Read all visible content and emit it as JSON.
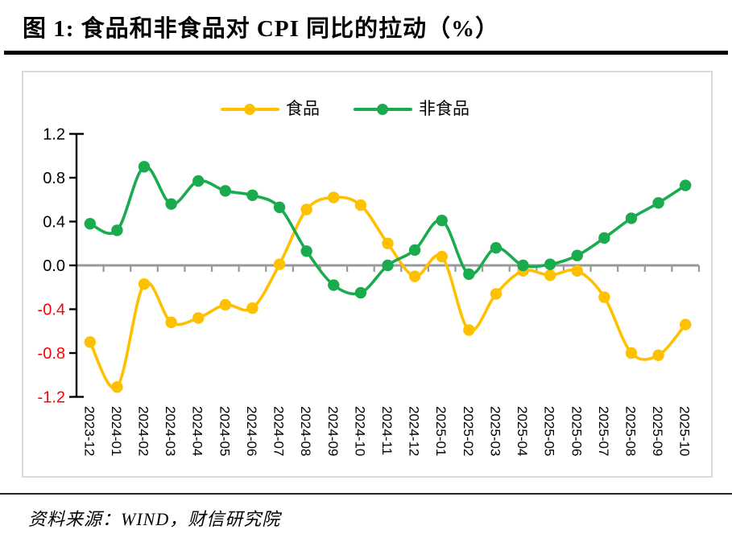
{
  "title": "图 1:  食品和非食品对 CPI 同比的拉动（%）",
  "source": "资料来源：WIND，财信研究院",
  "legend": {
    "food_label": "食品",
    "nonfood_label": "非食品"
  },
  "colors": {
    "food": "#FFC000",
    "nonfood": "#1BAB4F",
    "zero_line": "#999999",
    "axis": "#000000",
    "positive_tick_label": "#000000",
    "negative_tick_label": "#FF0000",
    "chart_border": "#D9D9D9"
  },
  "chart_data": {
    "type": "line",
    "smooth": true,
    "marker": "circle",
    "legend_position": "top-center",
    "grid": false,
    "ylim": [
      -1.2,
      1.2
    ],
    "yticks": [
      1.2,
      0.8,
      0.4,
      0.0,
      -0.4,
      -0.8,
      -1.2
    ],
    "categories": [
      "2023-12",
      "2024-01",
      "2024-02",
      "2024-03",
      "2024-04",
      "2024-05",
      "2024-06",
      "2024-07",
      "2024-08",
      "2024-09",
      "2024-10",
      "2024-11",
      "2024-12",
      "2025-01",
      "2025-02",
      "2025-03",
      "2025-04",
      "2025-05",
      "2025-06",
      "2025-07",
      "2025-08",
      "2025-09",
      "2025-10"
    ],
    "series": [
      {
        "name": "食品",
        "color": "#FFC000",
        "values": [
          -0.7,
          -1.11,
          -0.17,
          -0.52,
          -0.48,
          -0.36,
          -0.39,
          0.01,
          0.51,
          0.62,
          0.55,
          0.2,
          -0.1,
          0.08,
          -0.59,
          -0.26,
          -0.05,
          -0.09,
          -0.05,
          -0.29,
          -0.8,
          -0.82,
          -0.54
        ]
      },
      {
        "name": "非食品",
        "color": "#1BAB4F",
        "values": [
          0.38,
          0.32,
          0.9,
          0.56,
          0.77,
          0.68,
          0.64,
          0.53,
          0.13,
          -0.18,
          -0.25,
          0.0,
          0.14,
          0.41,
          -0.08,
          0.16,
          0.0,
          0.01,
          0.09,
          0.25,
          0.43,
          0.57,
          0.73
        ]
      }
    ]
  }
}
